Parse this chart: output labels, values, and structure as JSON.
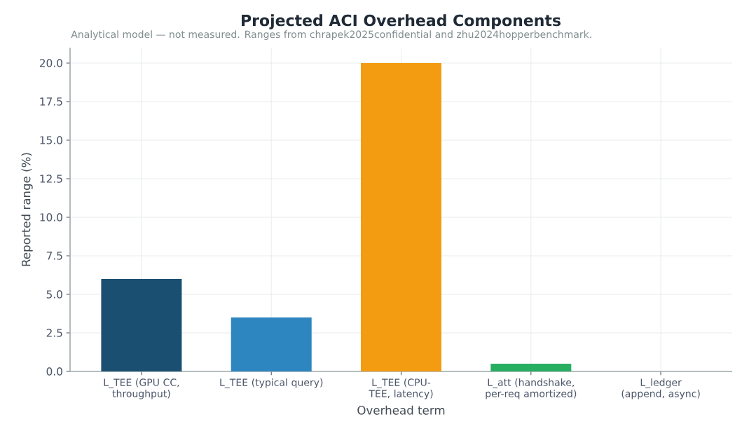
{
  "chart_data": {
    "type": "bar",
    "title": "Projected ACI Overhead Components",
    "subtitle": "Analytical model — not measured. Ranges from chrapek2025confidential and zhu2024hopperbenchmark.",
    "xlabel": "Overhead term",
    "ylabel": "Reported range (%)",
    "categories": [
      "L_TEE (GPU CC, throughput)",
      "L_TEE (typical query)",
      "L_TEE (CPU-TEE, latency)",
      "L_att (handshake, per-req amortized)",
      "L_ledger (append, async)"
    ],
    "values": [
      6.0,
      3.5,
      20.0,
      0.5,
      0
    ],
    "colors": [
      "#1b4f72",
      "#2e86c1",
      "#f39c12",
      "#27ae60",
      "#8e44ad"
    ],
    "ylim": [
      0,
      21
    ],
    "yticks": [
      {
        "value": 0,
        "label": "0.0"
      },
      {
        "value": 2.5,
        "label": "2.5"
      },
      {
        "value": 5,
        "label": "5.0"
      },
      {
        "value": 7.5,
        "label": "7.5"
      },
      {
        "value": 10,
        "label": "10.0"
      },
      {
        "value": 12.5,
        "label": "12.5"
      },
      {
        "value": 15,
        "label": "15.0"
      },
      {
        "value": 17.5,
        "label": "17.5"
      },
      {
        "value": 20,
        "label": "20.0"
      }
    ],
    "grid": true
  }
}
